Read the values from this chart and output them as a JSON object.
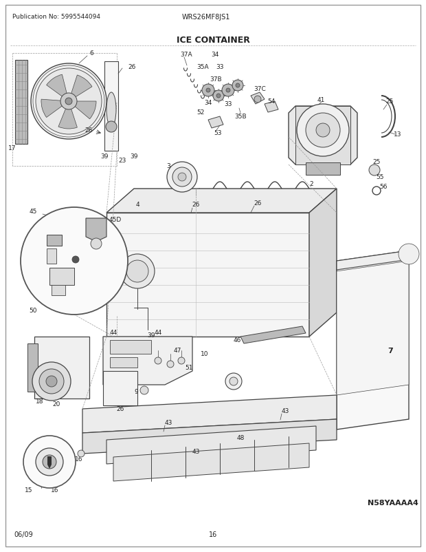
{
  "pub_no": "Publication No: 5995544094",
  "model": "WRS26MF8JS1",
  "title": "ICE CONTAINER",
  "date": "06/09",
  "page": "16",
  "diagram_code": "N58YAAAA4",
  "bg_color": "#ffffff",
  "line_color": "#444444",
  "text_color": "#222222",
  "fig_width": 6.2,
  "fig_height": 8.03,
  "dpi": 100
}
